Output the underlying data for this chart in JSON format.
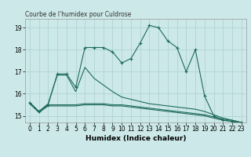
{
  "title": "Courbe de l'humidex pour Culdrose",
  "xlabel": "Humidex (Indice chaleur)",
  "xlim": [
    -0.5,
    23.5
  ],
  "ylim": [
    14.7,
    19.4
  ],
  "yticks": [
    15,
    16,
    17,
    18,
    19
  ],
  "xticks": [
    0,
    1,
    2,
    3,
    4,
    5,
    6,
    7,
    8,
    9,
    10,
    11,
    12,
    13,
    14,
    15,
    16,
    17,
    18,
    19,
    20,
    21,
    22,
    23
  ],
  "bg_color": "#cce8e8",
  "line_color": "#1f6b5e",
  "grid_color": "#aad0d0",
  "series": [
    {
      "x": [
        0,
        1,
        2,
        3,
        4,
        5,
        6,
        7,
        8,
        9,
        10,
        11,
        12,
        13,
        14,
        15,
        16,
        17,
        18,
        19,
        20,
        21,
        22,
        23
      ],
      "y": [
        15.6,
        15.2,
        15.5,
        16.9,
        16.9,
        16.3,
        18.1,
        18.1,
        18.1,
        17.9,
        17.4,
        17.6,
        18.3,
        19.1,
        19.0,
        18.4,
        18.1,
        17.0,
        18.0,
        15.9,
        15.0,
        14.8,
        14.75,
        14.7
      ],
      "marker": true
    },
    {
      "x": [
        0,
        1,
        2,
        3,
        4,
        5,
        6,
        7,
        8,
        9,
        10,
        11,
        12,
        13,
        14,
        15,
        16,
        17,
        18,
        19,
        20,
        21,
        22,
        23
      ],
      "y": [
        15.6,
        15.2,
        15.55,
        16.85,
        16.85,
        16.1,
        17.2,
        16.7,
        16.4,
        16.1,
        15.85,
        15.75,
        15.65,
        15.55,
        15.5,
        15.45,
        15.4,
        15.35,
        15.3,
        15.2,
        15.05,
        14.9,
        14.8,
        14.7
      ],
      "marker": false
    },
    {
      "x": [
        0,
        1,
        2,
        3,
        4,
        5,
        6,
        7,
        8,
        9,
        10,
        11,
        12,
        13,
        14,
        15,
        16,
        17,
        18,
        19,
        20,
        21,
        22,
        23
      ],
      "y": [
        15.6,
        15.2,
        15.5,
        15.5,
        15.5,
        15.5,
        15.55,
        15.55,
        15.55,
        15.5,
        15.5,
        15.45,
        15.4,
        15.35,
        15.3,
        15.25,
        15.2,
        15.15,
        15.1,
        15.05,
        14.95,
        14.85,
        14.8,
        14.7
      ],
      "marker": false
    },
    {
      "x": [
        0,
        1,
        2,
        3,
        4,
        5,
        6,
        7,
        8,
        9,
        10,
        11,
        12,
        13,
        14,
        15,
        16,
        17,
        18,
        19,
        20,
        21,
        22,
        23
      ],
      "y": [
        15.55,
        15.15,
        15.45,
        15.45,
        15.45,
        15.45,
        15.5,
        15.5,
        15.5,
        15.45,
        15.45,
        15.4,
        15.35,
        15.3,
        15.25,
        15.2,
        15.15,
        15.1,
        15.05,
        15.0,
        14.9,
        14.8,
        14.75,
        14.65
      ],
      "marker": false
    }
  ]
}
